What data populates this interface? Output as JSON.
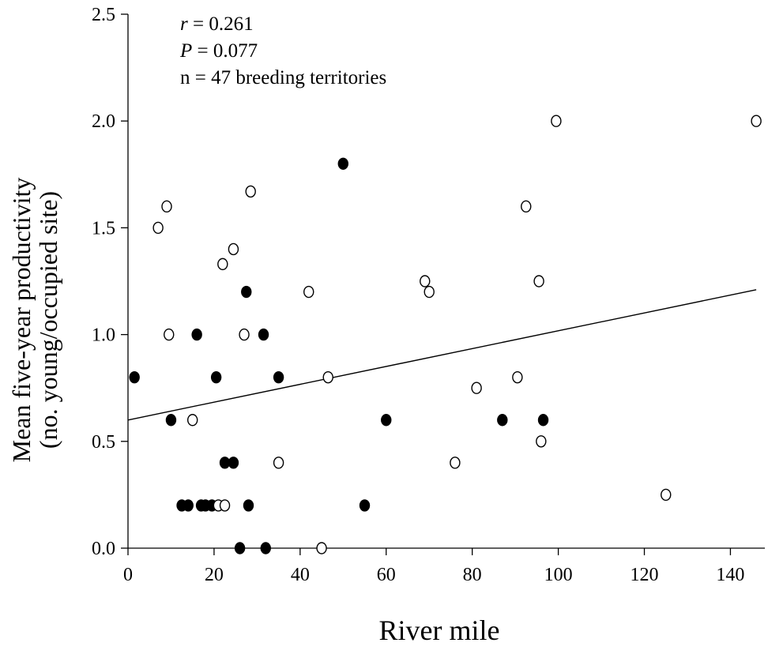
{
  "chart_data": {
    "type": "scatter",
    "title": "",
    "xlabel": "River mile",
    "ylabel_line1": "Mean five-year productivity",
    "ylabel_line2": "(no. young/occupied site)",
    "xlim": [
      0,
      148
    ],
    "ylim": [
      0,
      2.5
    ],
    "x_ticks": [
      0,
      20,
      40,
      60,
      80,
      100,
      120,
      140
    ],
    "y_ticks": [
      0.0,
      0.5,
      1.0,
      1.5,
      2.0,
      2.5
    ],
    "y_tick_labels": [
      "0.0",
      "0.5",
      "1.0",
      "1.5",
      "2.0",
      "2.5"
    ],
    "grid": false,
    "annotations": {
      "r_symbol": "r",
      "r_value": " = 0.261",
      "p_symbol": "P",
      "p_value": " = 0.077",
      "n_text": "n = 47 breeding territories"
    },
    "regression_line": {
      "x": [
        0,
        146
      ],
      "y": [
        0.6,
        1.21
      ]
    },
    "series": [
      {
        "marker": "filled",
        "color": "#000000",
        "points": [
          [
            1.5,
            0.8
          ],
          [
            10,
            0.6
          ],
          [
            12.5,
            0.2
          ],
          [
            14,
            0.2
          ],
          [
            16,
            1.0
          ],
          [
            17,
            0.2
          ],
          [
            18,
            0.2
          ],
          [
            19.5,
            0.2
          ],
          [
            20.5,
            0.8
          ],
          [
            22.5,
            0.4
          ],
          [
            24.5,
            0.4
          ],
          [
            26,
            0.0
          ],
          [
            27.5,
            1.2
          ],
          [
            28,
            0.2
          ],
          [
            31.5,
            1.0
          ],
          [
            32,
            0.0
          ],
          [
            35,
            0.8
          ],
          [
            50,
            1.8
          ],
          [
            55,
            0.2
          ],
          [
            60,
            0.6
          ],
          [
            87,
            0.6
          ],
          [
            96.5,
            0.6
          ]
        ]
      },
      {
        "marker": "open",
        "color": "#000000",
        "points": [
          [
            7,
            1.5
          ],
          [
            9,
            1.6
          ],
          [
            9.5,
            1.0
          ],
          [
            15,
            0.6
          ],
          [
            21,
            0.2
          ],
          [
            22,
            1.33
          ],
          [
            22.5,
            0.2
          ],
          [
            24.5,
            1.4
          ],
          [
            27,
            1.0
          ],
          [
            28.5,
            1.67
          ],
          [
            35,
            0.4
          ],
          [
            42,
            1.2
          ],
          [
            45,
            0.0
          ],
          [
            46.5,
            0.8
          ],
          [
            69,
            1.25
          ],
          [
            70,
            1.2
          ],
          [
            76,
            0.4
          ],
          [
            81,
            0.75
          ],
          [
            90.5,
            0.8
          ],
          [
            92.5,
            1.6
          ],
          [
            95.5,
            1.25
          ],
          [
            96,
            0.5
          ],
          [
            99.5,
            2.0
          ],
          [
            125,
            0.25
          ],
          [
            146,
            2.0
          ]
        ]
      }
    ]
  }
}
